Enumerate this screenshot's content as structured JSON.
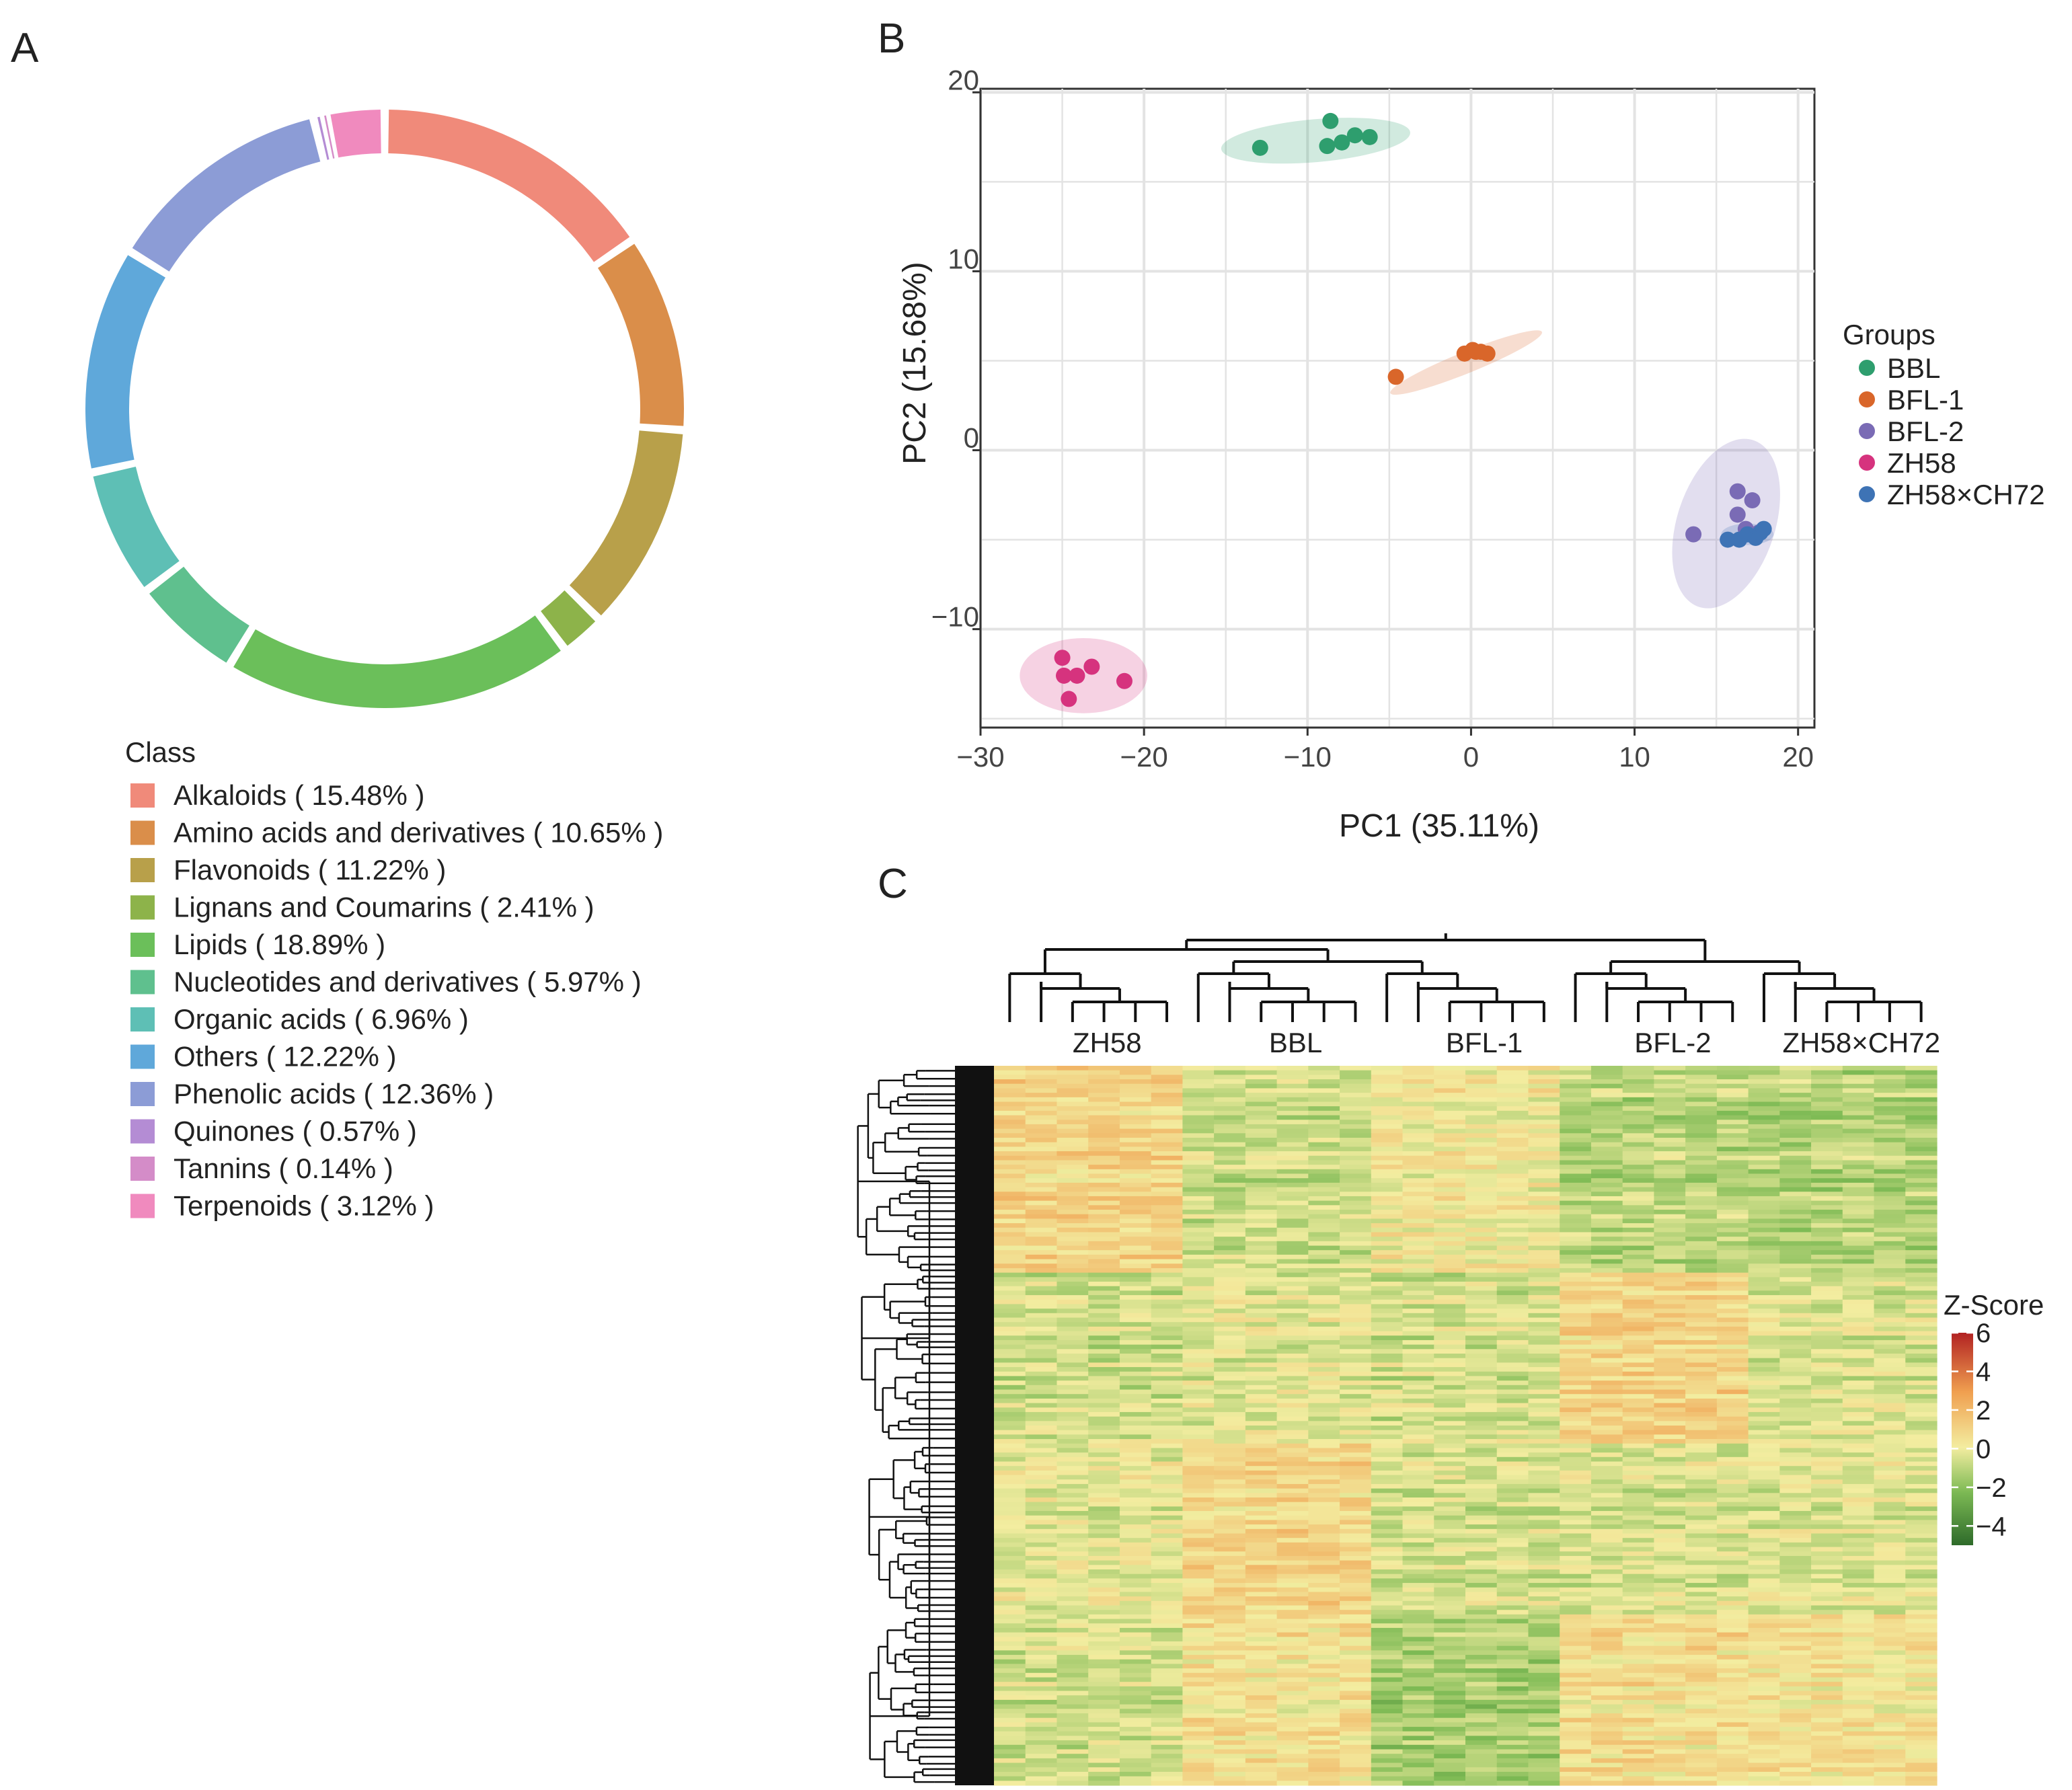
{
  "panels": {
    "a": "A",
    "b": "B",
    "c": "C"
  },
  "chart_data": [
    {
      "type": "pie",
      "variant": "donut",
      "legend_title": "Class",
      "legend_placement": "bottom",
      "slices": [
        {
          "name": "Alkaloids",
          "label": "Alkaloids ( 15.48% )",
          "value": 15.48,
          "color": "#F08A7A"
        },
        {
          "name": "Amino acids and derivatives",
          "label": "Amino acids and derivatives ( 10.65% )",
          "value": 10.65,
          "color": "#DA8E4A"
        },
        {
          "name": "Flavonoids",
          "label": "Flavonoids ( 11.22% )",
          "value": 11.22,
          "color": "#B8A04A"
        },
        {
          "name": "Lignans and Coumarins",
          "label": "Lignans and Coumarins ( 2.41% )",
          "value": 2.41,
          "color": "#8DB34A"
        },
        {
          "name": "Lipids",
          "label": "Lipids ( 18.89% )",
          "value": 18.89,
          "color": "#6BBF5A"
        },
        {
          "name": "Nucleotides and derivatives",
          "label": "Nucleotides and derivatives ( 5.97% )",
          "value": 5.97,
          "color": "#5FC08E"
        },
        {
          "name": "Organic acids",
          "label": "Organic acids ( 6.96% )",
          "value": 6.96,
          "color": "#5EBFB5"
        },
        {
          "name": "Others",
          "label": "Others ( 12.22% )",
          "value": 12.22,
          "color": "#5FA8DA"
        },
        {
          "name": "Phenolic acids",
          "label": "Phenolic acids ( 12.36% )",
          "value": 12.36,
          "color": "#8C9CD6"
        },
        {
          "name": "Quinones",
          "label": "Quinones ( 0.57% )",
          "value": 0.57,
          "color": "#B48CD4"
        },
        {
          "name": "Tannins",
          "label": "Tannins ( 0.14% )",
          "value": 0.14,
          "color": "#D48CC8"
        },
        {
          "name": "Terpenoids",
          "label": "Terpenoids ( 3.12% )",
          "value": 3.12,
          "color": "#F08ABE"
        }
      ]
    },
    {
      "type": "scatter",
      "xlabel": "PC1 (35.11%)",
      "ylabel": "PC2 (15.68%)",
      "xlim": [
        -30,
        21
      ],
      "ylim": [
        -15.5,
        20.2
      ],
      "xticks": [
        -30,
        -20,
        -10,
        0,
        10,
        20
      ],
      "yticks": [
        -10,
        0,
        10,
        20
      ],
      "grid": true,
      "legend_title": "Groups",
      "legend_placement": "right",
      "series": [
        {
          "name": "BBL",
          "color": "#2E9E6E",
          "points": [
            [
              -12.9,
              16.9
            ],
            [
              -8.6,
              18.4
            ],
            [
              -8.8,
              17.0
            ],
            [
              -7.9,
              17.2
            ],
            [
              -7.1,
              17.6
            ],
            [
              -6.2,
              17.5
            ]
          ],
          "ellipse": {
            "cx": -9.5,
            "cy": 17.3,
            "rx": 5.8,
            "ry": 1.2,
            "angle": 5
          }
        },
        {
          "name": "BFL-1",
          "color": "#D9662A",
          "points": [
            [
              -4.6,
              4.1
            ],
            [
              -0.4,
              5.4
            ],
            [
              0.1,
              5.6
            ],
            [
              0.6,
              5.5
            ],
            [
              1.0,
              5.4
            ],
            [
              0.3,
              5.5
            ]
          ],
          "ellipse": {
            "cx": -0.3,
            "cy": 4.9,
            "rx": 5.0,
            "ry": 0.6,
            "angle": 22
          }
        },
        {
          "name": "BFL-2",
          "color": "#7A6BB5",
          "points": [
            [
              13.6,
              -4.7
            ],
            [
              16.3,
              -2.3
            ],
            [
              17.2,
              -2.8
            ],
            [
              16.3,
              -3.6
            ],
            [
              16.8,
              -4.4
            ],
            [
              17.6,
              -4.6
            ]
          ],
          "ellipse": {
            "cx": 15.6,
            "cy": -4.1,
            "rx": 3.0,
            "ry": 4.9,
            "angle": -18
          }
        },
        {
          "name": "ZH58",
          "color": "#D6337E",
          "points": [
            [
              -25.0,
              -11.6
            ],
            [
              -24.9,
              -12.6
            ],
            [
              -24.1,
              -12.6
            ],
            [
              -23.2,
              -12.1
            ],
            [
              -21.2,
              -12.9
            ],
            [
              -24.6,
              -13.9
            ]
          ],
          "ellipse": {
            "cx": -23.7,
            "cy": -12.6,
            "rx": 3.9,
            "ry": 2.1,
            "angle": 0
          }
        },
        {
          "name": "ZH58×CH72",
          "color": "#3E73B5",
          "points": [
            [
              15.7,
              -5.0
            ],
            [
              16.4,
              -5.0
            ],
            [
              16.9,
              -4.7
            ],
            [
              17.4,
              -4.9
            ],
            [
              17.7,
              -4.6
            ],
            [
              17.9,
              -4.4
            ]
          ],
          "ellipse": {
            "cx": 16.9,
            "cy": -4.7,
            "rx": 1.6,
            "ry": 0.6,
            "angle": 0
          }
        }
      ]
    },
    {
      "type": "heatmap",
      "groups": [
        "ZH58",
        "BBL",
        "BFL-1",
        "BFL-2",
        "ZH58×CH72"
      ],
      "samples_per_group": 6,
      "row_clusters": 4,
      "colorbar_title": "Z-Score",
      "colorbar_ticks": [
        "6",
        "4",
        "2",
        "0",
        "−2",
        "−4"
      ],
      "zlim": [
        -5,
        6
      ],
      "colors": [
        "#2E6B2A",
        "#7DBA54",
        "#F3EDA0",
        "#F0A050",
        "#B22222"
      ],
      "cluster_means": [
        [
          0.9,
          -0.6,
          0.2,
          -0.9,
          -1.0
        ],
        [
          -0.6,
          -0.3,
          -0.5,
          0.9,
          -0.4
        ],
        [
          -0.2,
          0.8,
          -0.5,
          -0.4,
          -0.3
        ],
        [
          -0.6,
          0.4,
          -1.3,
          0.5,
          0.4
        ]
      ]
    }
  ]
}
